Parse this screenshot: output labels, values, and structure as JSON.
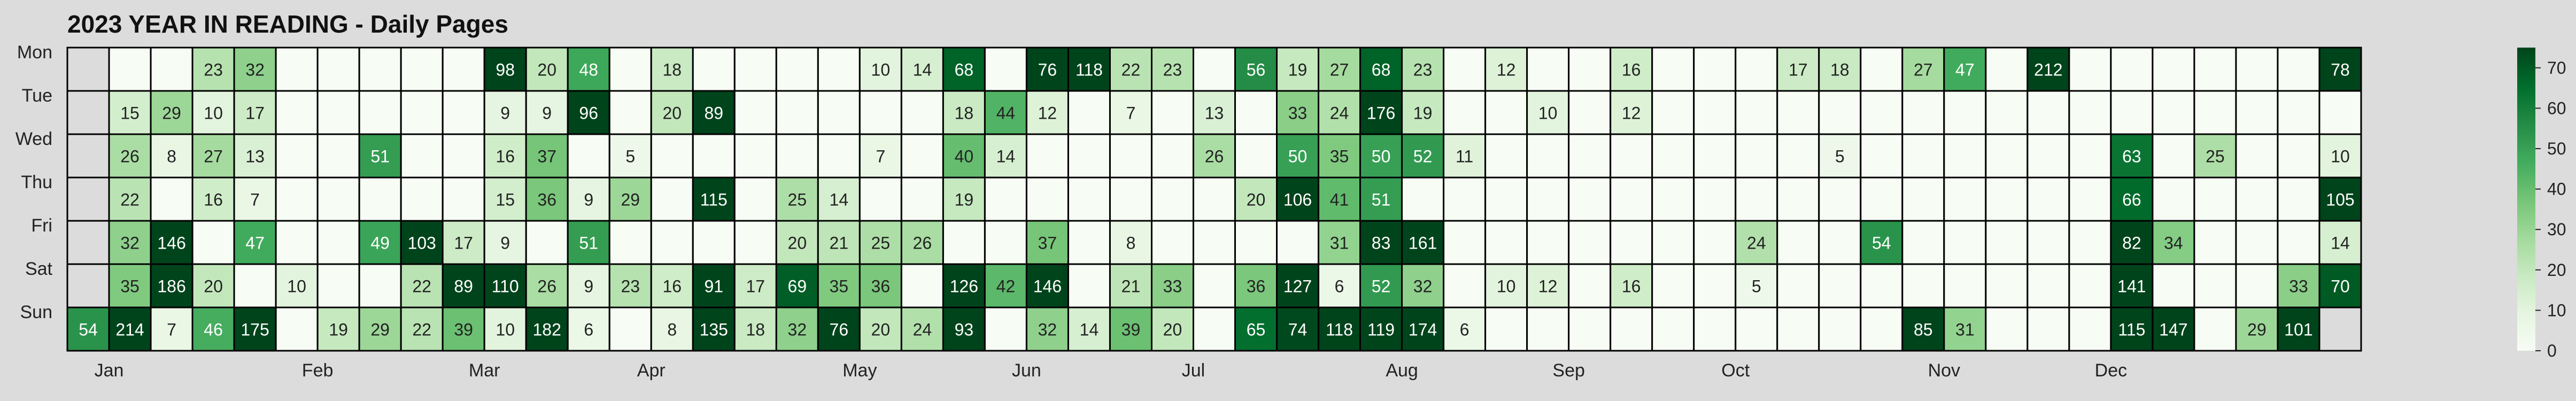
{
  "chart_data": {
    "type": "heatmap",
    "title": "2023 YEAR IN READING - Daily Pages",
    "xlabel": "",
    "ylabel": "",
    "rows": [
      "Mon",
      "Tue",
      "Wed",
      "Thu",
      "Fri",
      "Sat",
      "Sun"
    ],
    "month_labels": [
      {
        "label": "Jan",
        "week": 1
      },
      {
        "label": "Feb",
        "week": 6
      },
      {
        "label": "Mar",
        "week": 10
      },
      {
        "label": "Apr",
        "week": 14
      },
      {
        "label": "May",
        "week": 19
      },
      {
        "label": "Jun",
        "week": 23
      },
      {
        "label": "Jul",
        "week": 27
      },
      {
        "label": "Aug",
        "week": 32
      },
      {
        "label": "Sep",
        "week": 36
      },
      {
        "label": "Oct",
        "week": 40
      },
      {
        "label": "Nov",
        "week": 45
      },
      {
        "label": "Dec",
        "week": 49
      }
    ],
    "values": [
      [
        null,
        0,
        0,
        23,
        32,
        0,
        0,
        0,
        0,
        0,
        98,
        20,
        48,
        0,
        18,
        0,
        0,
        0,
        0,
        10,
        14,
        68,
        0,
        76,
        118,
        22,
        23,
        0,
        56,
        19,
        27,
        68,
        23,
        0,
        12,
        0,
        0,
        16,
        0,
        0,
        0,
        17,
        18,
        0,
        27,
        47,
        0,
        212,
        0,
        0,
        0,
        0,
        0,
        0,
        78
      ],
      [
        null,
        15,
        29,
        10,
        17,
        0,
        0,
        0,
        0,
        0,
        9,
        9,
        96,
        0,
        20,
        89,
        0,
        0,
        0,
        0,
        0,
        18,
        44,
        12,
        0,
        7,
        0,
        13,
        0,
        33,
        24,
        176,
        19,
        0,
        0,
        10,
        0,
        12,
        0,
        0,
        0,
        0,
        0,
        0,
        0,
        0,
        0,
        0,
        0,
        0,
        0,
        0,
        0,
        0,
        0
      ],
      [
        null,
        26,
        8,
        27,
        13,
        0,
        0,
        51,
        0,
        0,
        16,
        37,
        0,
        5,
        0,
        0,
        0,
        0,
        0,
        7,
        0,
        40,
        14,
        0,
        0,
        0,
        0,
        26,
        0,
        50,
        35,
        50,
        52,
        11,
        0,
        0,
        0,
        0,
        0,
        0,
        0,
        0,
        5,
        0,
        0,
        0,
        0,
        0,
        0,
        63,
        0,
        25,
        0,
        0,
        10
      ],
      [
        null,
        22,
        0,
        16,
        7,
        0,
        0,
        0,
        0,
        0,
        15,
        36,
        9,
        29,
        0,
        115,
        0,
        25,
        14,
        0,
        0,
        19,
        0,
        0,
        0,
        0,
        0,
        0,
        20,
        106,
        41,
        51,
        0,
        0,
        0,
        0,
        0,
        0,
        0,
        0,
        0,
        0,
        0,
        0,
        0,
        0,
        0,
        0,
        0,
        66,
        0,
        0,
        0,
        0,
        105
      ],
      [
        null,
        32,
        146,
        0,
        47,
        0,
        0,
        49,
        103,
        17,
        9,
        0,
        51,
        0,
        0,
        0,
        0,
        20,
        21,
        25,
        26,
        0,
        0,
        37,
        0,
        8,
        0,
        0,
        0,
        0,
        31,
        83,
        161,
        0,
        0,
        0,
        0,
        0,
        0,
        0,
        24,
        0,
        0,
        54,
        0,
        0,
        0,
        0,
        0,
        82,
        34,
        0,
        0,
        0,
        14
      ],
      [
        null,
        35,
        186,
        20,
        0,
        10,
        0,
        0,
        22,
        89,
        110,
        26,
        9,
        23,
        16,
        91,
        17,
        69,
        35,
        36,
        0,
        126,
        42,
        146,
        0,
        21,
        33,
        0,
        36,
        127,
        6,
        52,
        32,
        0,
        10,
        12,
        0,
        16,
        0,
        0,
        5,
        0,
        0,
        0,
        0,
        0,
        0,
        0,
        0,
        141,
        0,
        0,
        0,
        33,
        70
      ],
      [
        54,
        214,
        7,
        46,
        175,
        0,
        19,
        29,
        22,
        39,
        10,
        182,
        6,
        0,
        8,
        135,
        18,
        32,
        76,
        20,
        24,
        93,
        0,
        32,
        14,
        39,
        20,
        0,
        65,
        74,
        118,
        119,
        174,
        6,
        0,
        0,
        0,
        0,
        0,
        0,
        0,
        0,
        0,
        0,
        85,
        31,
        0,
        0,
        0,
        115,
        147,
        0,
        29,
        101,
        null
      ]
    ],
    "colorbar": {
      "min": 0,
      "max": 75,
      "ticks": [
        0,
        10,
        20,
        30,
        40,
        50,
        60,
        70
      ]
    },
    "colorscale": [
      "#f7fcf5",
      "#e5f5e0",
      "#c7e9c0",
      "#a1d99b",
      "#74c476",
      "#41ab5d",
      "#238b45",
      "#006d2c",
      "#00441b"
    ],
    "grid": true,
    "legend": "colorbar-right"
  }
}
